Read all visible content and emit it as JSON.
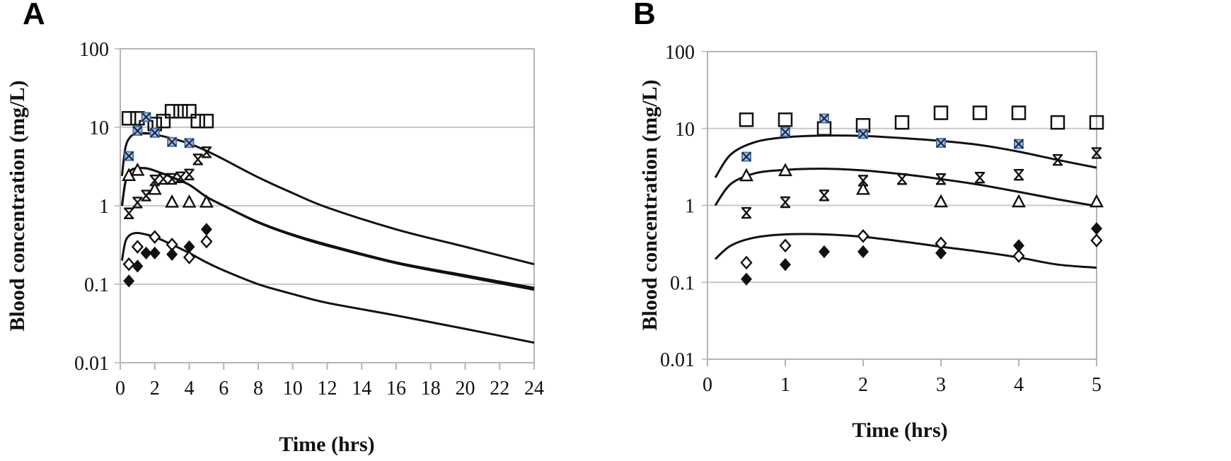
{
  "chart_data": [
    {
      "panel": "A",
      "type": "scatter",
      "title": "",
      "xlabel": "Time (hrs)",
      "ylabel": "Blood concentration (mg/L)",
      "xlim": [
        0,
        24
      ],
      "ylim": [
        0.01,
        100
      ],
      "yscale": "log",
      "x_ticks": [
        "0",
        "2",
        "4",
        "6",
        "8",
        "10",
        "12",
        "14",
        "16",
        "18",
        "20",
        "22",
        "24"
      ],
      "y_ticks": [
        "100",
        "10",
        "1",
        "0.1",
        "0.01"
      ],
      "grid": true,
      "series": [
        {
          "name": "open-square",
          "marker": "square",
          "x": [
            0.5,
            1,
            1.5,
            2,
            2.5,
            3,
            3.5,
            4,
            4.5,
            5
          ],
          "y": [
            13,
            13,
            10,
            11,
            12,
            16,
            16,
            16,
            12,
            12
          ]
        },
        {
          "name": "crossed-square",
          "marker": "crossed-square",
          "color": "#4a78b0",
          "x": [
            0.5,
            1,
            1.5,
            2,
            3,
            4
          ],
          "y": [
            4.3,
            9,
            13.5,
            8.5,
            6.5,
            6.3
          ]
        },
        {
          "name": "asterisk",
          "marker": "asterisk",
          "x": [
            0.5,
            1,
            1.5,
            2,
            2.5,
            3,
            3.5,
            4,
            4.5,
            5
          ],
          "y": [
            0.8,
            1.1,
            1.35,
            2.1,
            2.2,
            2.2,
            2.3,
            2.5,
            3.9,
            4.8
          ]
        },
        {
          "name": "open-triangle",
          "marker": "triangle",
          "x": [
            0.5,
            1,
            2,
            3,
            4,
            5
          ],
          "y": [
            2.4,
            2.8,
            1.6,
            1.1,
            1.1,
            1.1
          ]
        },
        {
          "name": "open-diamond",
          "marker": "diamond-open",
          "x": [
            0.5,
            1,
            2,
            3,
            4,
            5
          ],
          "y": [
            0.18,
            0.3,
            0.4,
            0.32,
            0.22,
            0.35
          ]
        },
        {
          "name": "filled-diamond",
          "marker": "diamond-filled",
          "x": [
            0.5,
            1,
            1.5,
            2,
            3,
            4,
            5
          ],
          "y": [
            0.11,
            0.17,
            0.25,
            0.25,
            0.24,
            0.3,
            0.5
          ]
        }
      ],
      "curves": [
        {
          "name": "model-high",
          "x": [
            0.1,
            0.3,
            0.6,
            1,
            1.5,
            2,
            3,
            4,
            5,
            6,
            8,
            10,
            12,
            16,
            20,
            24
          ],
          "y": [
            2.4,
            5.5,
            7.6,
            8.3,
            8.4,
            8.1,
            7.2,
            6.2,
            5.0,
            3.9,
            2.3,
            1.45,
            0.95,
            0.5,
            0.3,
            0.18
          ]
        },
        {
          "name": "model-mid-1",
          "x": [
            0.1,
            0.3,
            0.6,
            1,
            1.5,
            2,
            3,
            4,
            5,
            6,
            8,
            10,
            12,
            16,
            20,
            24
          ],
          "y": [
            1.0,
            2.0,
            2.8,
            3.0,
            3.0,
            2.8,
            2.3,
            1.85,
            1.3,
            1.0,
            0.62,
            0.43,
            0.32,
            0.19,
            0.13,
            0.09
          ]
        },
        {
          "name": "model-mid-2",
          "x": [
            0.1,
            0.3,
            0.6,
            1,
            1.5,
            2,
            3,
            4,
            5,
            6,
            8,
            10,
            12,
            16,
            20,
            24
          ],
          "y": [
            1.0,
            2.0,
            2.8,
            3.0,
            3.0,
            2.8,
            2.3,
            1.85,
            1.3,
            1.0,
            0.61,
            0.42,
            0.31,
            0.185,
            0.125,
            0.085
          ]
        },
        {
          "name": "model-low",
          "x": [
            0.1,
            0.3,
            0.6,
            1,
            1.5,
            2,
            3,
            4,
            5,
            6,
            8,
            10,
            12,
            16,
            20,
            24
          ],
          "y": [
            0.2,
            0.35,
            0.43,
            0.45,
            0.43,
            0.4,
            0.32,
            0.25,
            0.19,
            0.15,
            0.1,
            0.075,
            0.058,
            0.04,
            0.027,
            0.018
          ]
        }
      ]
    },
    {
      "panel": "B",
      "type": "scatter",
      "title": "",
      "xlabel": "Time (hrs)",
      "ylabel": "Blood concentration (mg/L)",
      "xlim": [
        0,
        5
      ],
      "ylim": [
        0.01,
        100
      ],
      "yscale": "log",
      "x_ticks": [
        "0",
        "1",
        "2",
        "3",
        "4",
        "5"
      ],
      "y_ticks": [
        "100",
        "10",
        "1",
        "0.1",
        "0.01"
      ],
      "grid": true,
      "series": [
        {
          "name": "open-square",
          "marker": "square",
          "x": [
            0.5,
            1,
            1.5,
            2,
            2.5,
            3,
            3.5,
            4,
            4.5,
            5
          ],
          "y": [
            13,
            13,
            10,
            11,
            12,
            16,
            16,
            16,
            12,
            12
          ]
        },
        {
          "name": "crossed-square",
          "marker": "crossed-square",
          "color": "#4a78b0",
          "x": [
            0.5,
            1,
            1.5,
            2,
            3,
            4
          ],
          "y": [
            4.3,
            9,
            13.5,
            8.5,
            6.5,
            6.3
          ]
        },
        {
          "name": "asterisk",
          "marker": "asterisk",
          "x": [
            0.5,
            1,
            1.5,
            2,
            2.5,
            3,
            3.5,
            4,
            4.5,
            5
          ],
          "y": [
            0.8,
            1.1,
            1.35,
            2.1,
            2.2,
            2.2,
            2.3,
            2.5,
            3.9,
            4.8
          ]
        },
        {
          "name": "open-triangle",
          "marker": "triangle",
          "x": [
            0.5,
            1,
            2,
            3,
            4,
            5
          ],
          "y": [
            2.4,
            2.8,
            1.6,
            1.1,
            1.1,
            1.1
          ]
        },
        {
          "name": "open-diamond",
          "marker": "diamond-open",
          "x": [
            0.5,
            1,
            2,
            3,
            4,
            5
          ],
          "y": [
            0.18,
            0.3,
            0.4,
            0.32,
            0.22,
            0.35
          ]
        },
        {
          "name": "filled-diamond",
          "marker": "diamond-filled",
          "x": [
            0.5,
            1,
            1.5,
            2,
            3,
            4,
            5
          ],
          "y": [
            0.11,
            0.17,
            0.25,
            0.25,
            0.24,
            0.3,
            0.5
          ]
        }
      ],
      "curves": [
        {
          "name": "model-high",
          "x": [
            0.1,
            0.3,
            0.6,
            1,
            1.5,
            2,
            2.5,
            3,
            3.5,
            4,
            4.5,
            5
          ],
          "y": [
            2.3,
            4.6,
            6.6,
            7.7,
            8.1,
            8.0,
            7.5,
            6.9,
            6.1,
            5.0,
            3.9,
            3.1
          ]
        },
        {
          "name": "model-mid",
          "x": [
            0.1,
            0.3,
            0.6,
            1,
            1.5,
            2,
            2.5,
            3,
            3.5,
            4,
            4.5,
            5
          ],
          "y": [
            1.0,
            1.9,
            2.6,
            2.9,
            3.0,
            2.85,
            2.55,
            2.2,
            1.85,
            1.5,
            1.2,
            0.98
          ]
        },
        {
          "name": "model-low",
          "x": [
            0.1,
            0.3,
            0.6,
            1,
            1.5,
            2,
            2.5,
            3,
            3.5,
            4,
            4.5,
            5
          ],
          "y": [
            0.2,
            0.3,
            0.38,
            0.42,
            0.42,
            0.39,
            0.34,
            0.29,
            0.25,
            0.21,
            0.17,
            0.155
          ]
        }
      ]
    }
  ]
}
